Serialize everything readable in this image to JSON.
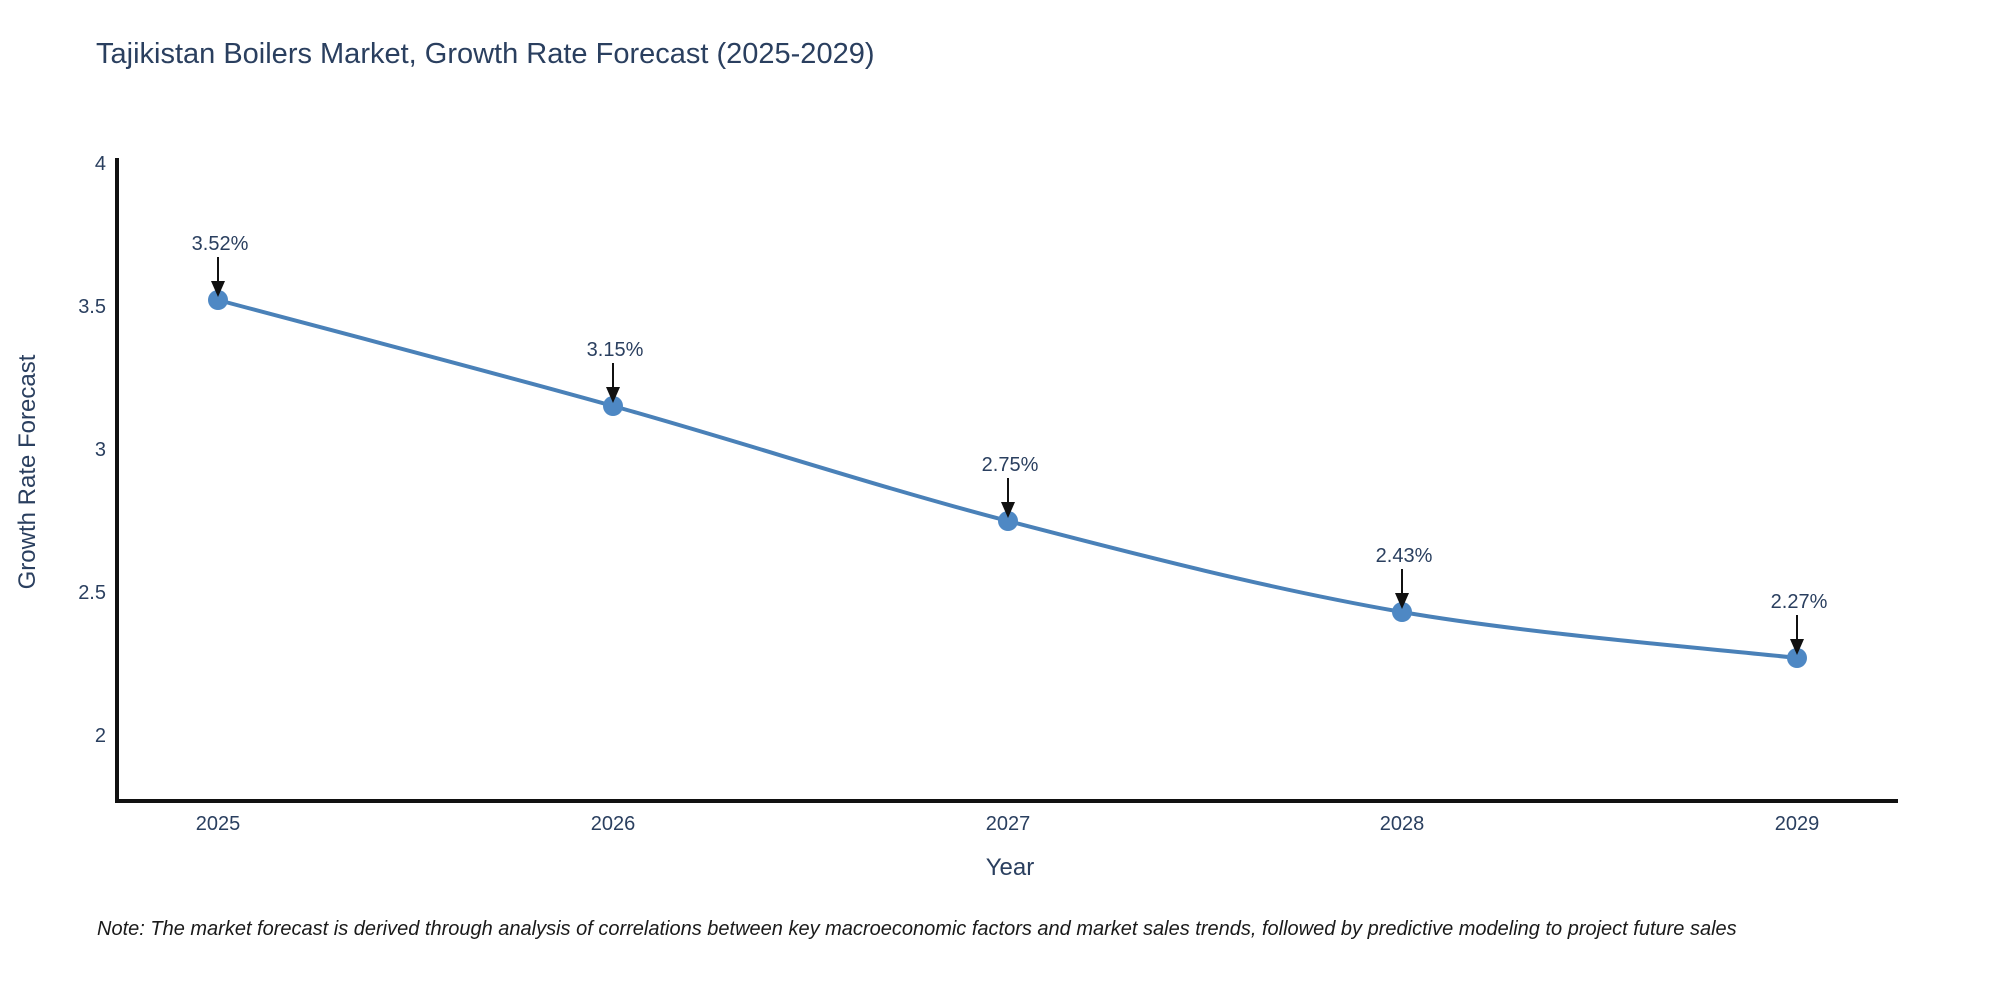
{
  "chart": {
    "note": "Note: The market forecast is derived through analysis of correlations between key macroeconomic factors and market sales trends, followed by predictive modeling to project future sales"
  },
  "chart_data": {
    "type": "line",
    "title": "Tajikistan Boilers Market, Growth Rate Forecast (2025-2029)",
    "x": [
      "2025",
      "2026",
      "2027",
      "2028",
      "2029"
    ],
    "values": [
      3.52,
      3.15,
      2.75,
      2.43,
      2.27
    ],
    "point_labels": [
      "3.52%",
      "3.15%",
      "2.75%",
      "2.43%",
      "2.27%"
    ],
    "xlabel": "Year",
    "ylabel": "Growth Rate Forecast",
    "yticks": [
      "4",
      "3.5",
      "3",
      "2.5",
      "2"
    ],
    "ytick_values": [
      4,
      3.5,
      3,
      2.5,
      2
    ],
    "ylim": [
      1.76,
      4
    ],
    "grid": false,
    "legend_position": "none",
    "line_shape": "spline",
    "colors": {
      "line": "#4a81b8",
      "marker": "#4e88c4",
      "axis": "#111111",
      "text": "#2a3f5f",
      "note": "#1a1a1a"
    }
  }
}
